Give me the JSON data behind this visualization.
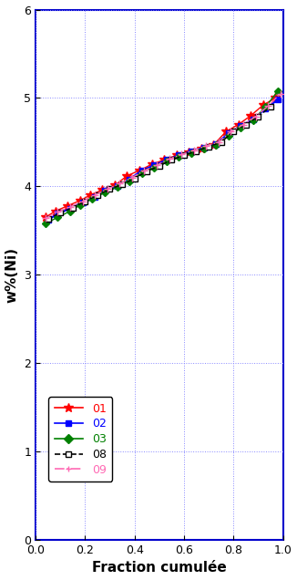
{
  "title": "",
  "xlabel": "Fraction cumulée",
  "ylabel": "w%(Ni)",
  "xlim": [
    0,
    1.0
  ],
  "ylim": [
    0,
    6
  ],
  "xticks": [
    0,
    0.2,
    0.4,
    0.6,
    0.8,
    1.0
  ],
  "yticks": [
    0,
    1,
    2,
    3,
    4,
    5,
    6
  ],
  "series": {
    "01": {
      "color": "#ff0000",
      "linestyle": "-",
      "marker": "*",
      "markercolor": "#ff0000",
      "markeredgecolor": "#ff0000",
      "linewidth": 1.0,
      "markersize": 7,
      "x": [
        0.04,
        0.08,
        0.13,
        0.18,
        0.22,
        0.27,
        0.32,
        0.37,
        0.42,
        0.47,
        0.52,
        0.57,
        0.62,
        0.67,
        0.72,
        0.77,
        0.82,
        0.87,
        0.92,
        0.97
      ],
      "y": [
        3.65,
        3.72,
        3.78,
        3.84,
        3.9,
        3.96,
        4.01,
        4.12,
        4.18,
        4.25,
        4.3,
        4.35,
        4.39,
        4.43,
        4.47,
        4.62,
        4.7,
        4.8,
        4.92,
        5.0
      ]
    },
    "02": {
      "color": "#0000ff",
      "linestyle": "-",
      "marker": "s",
      "markercolor": "#0000ff",
      "markeredgecolor": "#0000ff",
      "linewidth": 1.5,
      "markersize": 5,
      "x": [
        0.05,
        0.09,
        0.14,
        0.19,
        0.24,
        0.28,
        0.33,
        0.38,
        0.43,
        0.48,
        0.53,
        0.58,
        0.63,
        0.68,
        0.73,
        0.78,
        0.83,
        0.88,
        0.93,
        0.98
      ],
      "y": [
        3.62,
        3.69,
        3.75,
        3.82,
        3.88,
        3.95,
        4.0,
        4.08,
        4.18,
        4.24,
        4.3,
        4.35,
        4.4,
        4.44,
        4.48,
        4.6,
        4.68,
        4.76,
        4.88,
        4.98
      ]
    },
    "03": {
      "color": "#008000",
      "linestyle": "-",
      "marker": "D",
      "markercolor": "#008000",
      "markeredgecolor": "#008000",
      "linewidth": 1.0,
      "markersize": 4,
      "x": [
        0.04,
        0.09,
        0.14,
        0.18,
        0.23,
        0.28,
        0.33,
        0.38,
        0.43,
        0.48,
        0.53,
        0.58,
        0.63,
        0.68,
        0.73,
        0.78,
        0.83,
        0.88,
        0.93,
        0.98
      ],
      "y": [
        3.58,
        3.65,
        3.72,
        3.79,
        3.86,
        3.93,
        3.99,
        4.06,
        4.15,
        4.21,
        4.28,
        4.33,
        4.38,
        4.43,
        4.47,
        4.57,
        4.66,
        4.75,
        4.9,
        5.08
      ]
    },
    "08": {
      "color": "#000000",
      "linestyle": "--",
      "marker": "s",
      "markercolor": "#ffffff",
      "markeredgecolor": "#000000",
      "linewidth": 1.0,
      "markersize": 5,
      "x": [
        0.05,
        0.1,
        0.15,
        0.2,
        0.25,
        0.3,
        0.35,
        0.4,
        0.45,
        0.5,
        0.55,
        0.6,
        0.65,
        0.7,
        0.75,
        0.8,
        0.85,
        0.9,
        0.95
      ],
      "y": [
        3.63,
        3.7,
        3.76,
        3.83,
        3.9,
        3.97,
        4.02,
        4.09,
        4.17,
        4.23,
        4.3,
        4.35,
        4.4,
        4.45,
        4.5,
        4.62,
        4.7,
        4.79,
        4.9
      ]
    },
    "09": {
      "color": "#ff69b4",
      "linestyle": "-.",
      "marker": "+",
      "markercolor": "#ffffff",
      "markeredgecolor": "#ff69b4",
      "linewidth": 1.0,
      "markersize": 6,
      "x": [
        0.04,
        0.09,
        0.14,
        0.19,
        0.24,
        0.29,
        0.34,
        0.39,
        0.44,
        0.49,
        0.54,
        0.59,
        0.64,
        0.69,
        0.74,
        0.79,
        0.84,
        0.89,
        0.94,
        0.99
      ],
      "y": [
        3.64,
        3.71,
        3.77,
        3.83,
        3.9,
        3.97,
        4.03,
        4.1,
        4.18,
        4.24,
        4.31,
        4.36,
        4.41,
        4.46,
        4.5,
        4.62,
        4.7,
        4.79,
        4.91,
        5.05
      ]
    }
  },
  "legend_info": [
    {
      "label": "01",
      "color": "#ff0000",
      "linestyle": "-",
      "marker": "*",
      "mfc": "#ff0000",
      "mec": "#ff0000"
    },
    {
      "label": "02",
      "color": "#0000ff",
      "linestyle": "-",
      "marker": "s",
      "mfc": "#0000ff",
      "mec": "#0000ff"
    },
    {
      "label": "03",
      "color": "#008000",
      "linestyle": "-",
      "marker": "D",
      "mfc": "#008000",
      "mec": "#008000"
    },
    {
      "label": "08",
      "color": "#000000",
      "linestyle": "--",
      "marker": "s",
      "mfc": "#ffffff",
      "mec": "#000000"
    },
    {
      "label": "09",
      "color": "#ff69b4",
      "linestyle": "-.",
      "marker": "+",
      "mfc": "#ffffff",
      "mec": "#ff69b4"
    }
  ],
  "legend_text_colors": [
    "#ff0000",
    "#0000ff",
    "#008000",
    "#000000",
    "#ff69b4"
  ],
  "spine_color": "#0000cc",
  "grid_color": "#8888ff",
  "background_color": "#ffffff"
}
